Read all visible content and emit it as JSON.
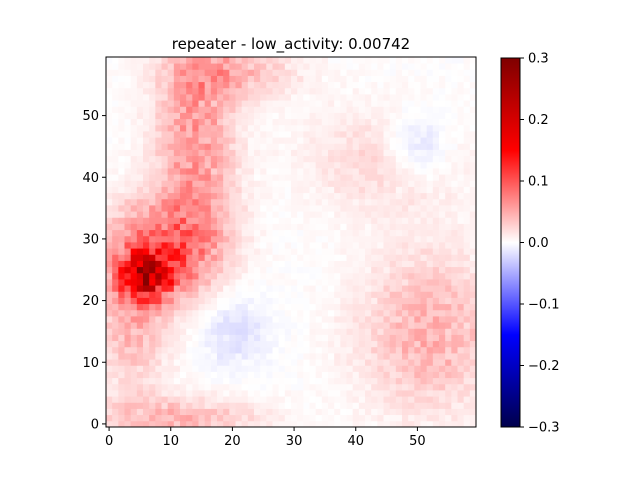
{
  "chart_data": {
    "type": "heatmap",
    "title": "repeater - low_activity: 0.00742",
    "xlabel": "",
    "ylabel": "",
    "grid_size": [
      60,
      60
    ],
    "xlim": [
      -0.5,
      59.5
    ],
    "ylim": [
      -0.5,
      59.5
    ],
    "x_ticks": [
      "0",
      "10",
      "20",
      "30",
      "40",
      "50"
    ],
    "y_ticks": [
      "0",
      "10",
      "20",
      "30",
      "40",
      "50"
    ],
    "colormap": "seismic",
    "color_range": [
      -0.3,
      0.3
    ],
    "colorbar_ticks": [
      "−0.3",
      "−0.2",
      "−0.1",
      "0.0",
      "0.1",
      "0.2",
      "0.3"
    ],
    "grid": false,
    "activation_regions": [
      {
        "x": 6,
        "y": 24,
        "sx": 3.0,
        "sy": 2.5,
        "value": 0.16
      },
      {
        "x": 9,
        "y": 29,
        "sx": 6.0,
        "sy": 5.0,
        "value": 0.08
      },
      {
        "x": 14,
        "y": 45,
        "sx": 4.5,
        "sy": 13.0,
        "value": 0.06
      },
      {
        "x": 4,
        "y": 18,
        "sx": 4.0,
        "sy": 8.0,
        "value": 0.05
      },
      {
        "x": 52,
        "y": 15,
        "sx": 8.0,
        "sy": 9.0,
        "value": 0.045
      },
      {
        "x": 45,
        "y": 43,
        "sx": 9.0,
        "sy": 6.0,
        "value": 0.025
      },
      {
        "x": 20,
        "y": 57,
        "sx": 7.0,
        "sy": 3.0,
        "value": 0.04
      },
      {
        "x": 10,
        "y": 1,
        "sx": 10.0,
        "sy": 2.5,
        "value": 0.04
      },
      {
        "x": 50,
        "y": 45,
        "sx": 4.0,
        "sy": 4.0,
        "value": -0.03
      },
      {
        "x": 20,
        "y": 15,
        "sx": 4.0,
        "sy": 4.0,
        "value": -0.02
      }
    ]
  }
}
